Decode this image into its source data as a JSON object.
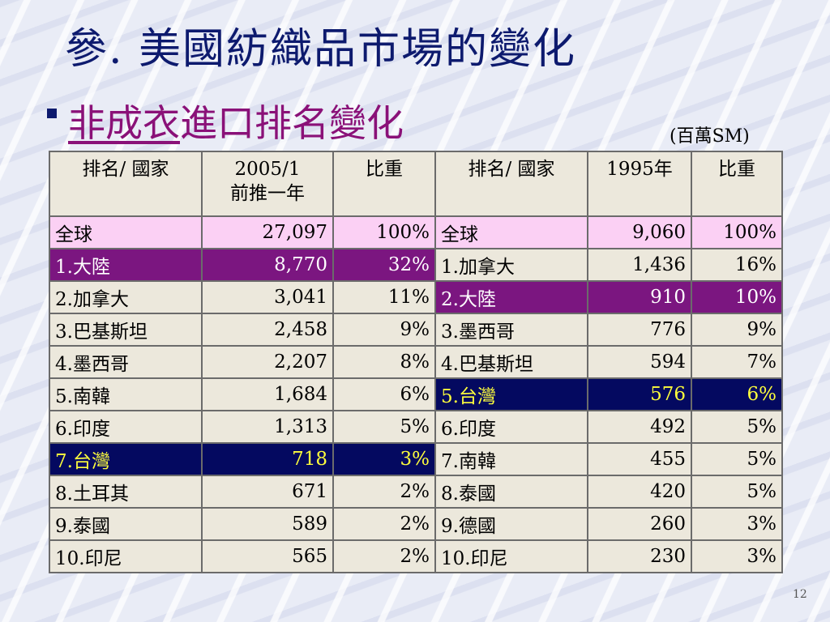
{
  "title": "參. 美國紡織品市場的變化",
  "subtitle": {
    "part1": "非成衣",
    "part2": "進口排名變化"
  },
  "unit": "(百萬SM)",
  "page_number": "12",
  "colors": {
    "purple_highlight": "#7b1680",
    "navy_highlight": "#040960",
    "yellow_text": "#ffff3c",
    "global_row": "#fbd0f4"
  },
  "table": {
    "headers": {
      "left_country": "排名/ 國家",
      "left_value_l1": "2005/1",
      "left_value_l2": "前推一年",
      "left_share": "比重",
      "right_country": "排名/ 國家",
      "right_value": "1995年",
      "right_share": "比重"
    },
    "rows": [
      {
        "l_name": "全球",
        "l_value": "27,097",
        "l_share": "100%",
        "r_name": "全球",
        "r_value": "9,060",
        "r_share": "100%"
      },
      {
        "l_name": "1.大陸",
        "l_value": "8,770",
        "l_share": "32%",
        "r_name": "1.加拿大",
        "r_value": "1,436",
        "r_share": "16%"
      },
      {
        "l_name": "2.加拿大",
        "l_value": "3,041",
        "l_share": "11%",
        "r_name": "2.大陸",
        "r_value": "910",
        "r_share": "10%"
      },
      {
        "l_name": "3.巴基斯坦",
        "l_value": "2,458",
        "l_share": "9%",
        "r_name": "3.墨西哥",
        "r_value": "776",
        "r_share": "9%"
      },
      {
        "l_name": "4.墨西哥",
        "l_value": "2,207",
        "l_share": "8%",
        "r_name": "4.巴基斯坦",
        "r_value": "594",
        "r_share": "7%"
      },
      {
        "l_name": "5.南韓",
        "l_value": "1,684",
        "l_share": "6%",
        "r_name": "5.台灣",
        "r_value": "576",
        "r_share": "6%"
      },
      {
        "l_name": "6.印度",
        "l_value": "1,313",
        "l_share": "5%",
        "r_name": "6.印度",
        "r_value": "492",
        "r_share": "5%"
      },
      {
        "l_name": "7.台灣",
        "l_value": "718",
        "l_share": "3%",
        "r_name": "7.南韓",
        "r_value": "455",
        "r_share": "5%"
      },
      {
        "l_name": "8.土耳其",
        "l_value": "671",
        "l_share": "2%",
        "r_name": "8.泰國",
        "r_value": "420",
        "r_share": "5%"
      },
      {
        "l_name": "9.泰國",
        "l_value": "589",
        "l_share": "2%",
        "r_name": "9.德國",
        "r_value": "260",
        "r_share": "3%"
      },
      {
        "l_name": "10.印尼",
        "l_value": "565",
        "l_share": "2%",
        "r_name": "10.印尼",
        "r_value": "230",
        "r_share": "3%"
      }
    ]
  }
}
